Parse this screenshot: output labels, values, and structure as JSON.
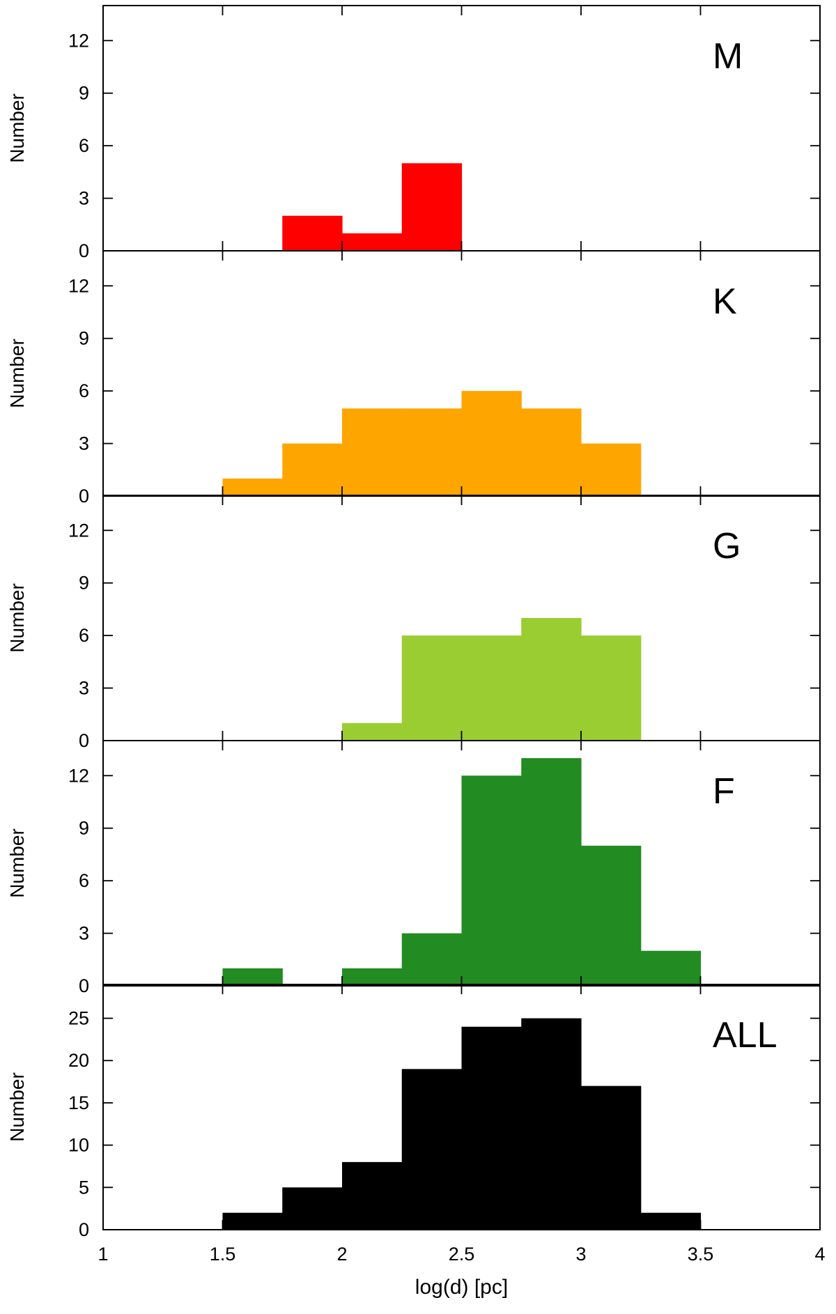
{
  "chart_data": [
    {
      "type": "bar",
      "panel_label": "M",
      "ylabel": "Number",
      "xlabel": "",
      "xlim": [
        1,
        4
      ],
      "ylim": [
        0,
        14
      ],
      "yticks": [
        0,
        3,
        6,
        9,
        12
      ],
      "bin_edges": [
        1.75,
        2.0,
        2.25,
        2.5
      ],
      "values": [
        2,
        1,
        5
      ],
      "color": "#ff0000",
      "grid": false
    },
    {
      "type": "bar",
      "panel_label": "K",
      "ylabel": "Number",
      "xlabel": "",
      "xlim": [
        1,
        4
      ],
      "ylim": [
        0,
        14
      ],
      "yticks": [
        0,
        3,
        6,
        9,
        12
      ],
      "bin_edges": [
        1.5,
        1.75,
        2.0,
        2.25,
        2.5,
        2.75,
        3.0,
        3.25
      ],
      "values": [
        1,
        3,
        5,
        5,
        6,
        5,
        3
      ],
      "color": "#ffa500",
      "grid": false
    },
    {
      "type": "bar",
      "panel_label": "G",
      "ylabel": "Number",
      "xlabel": "",
      "xlim": [
        1,
        4
      ],
      "ylim": [
        0,
        14
      ],
      "yticks": [
        0,
        3,
        6,
        9,
        12
      ],
      "bin_edges": [
        2.0,
        2.25,
        2.5,
        2.75,
        3.0,
        3.25
      ],
      "values": [
        1,
        6,
        6,
        7,
        6
      ],
      "color": "#9acd32",
      "grid": false
    },
    {
      "type": "bar",
      "panel_label": "F",
      "ylabel": "Number",
      "xlabel": "",
      "xlim": [
        1,
        4
      ],
      "ylim": [
        0,
        14
      ],
      "yticks": [
        0,
        3,
        6,
        9,
        12
      ],
      "bin_edges": [
        1.5,
        1.75,
        2.0,
        2.25,
        2.5,
        2.75,
        3.0,
        3.25,
        3.5
      ],
      "values": [
        1,
        0,
        1,
        3,
        12,
        13,
        8,
        2
      ],
      "color": "#228b22",
      "grid": false
    },
    {
      "type": "bar",
      "panel_label": "ALL",
      "ylabel": "Number",
      "xlabel": "log(d) [pc]",
      "xlim": [
        1,
        4
      ],
      "ylim": [
        0,
        29
      ],
      "yticks": [
        0,
        5,
        10,
        15,
        20,
        25
      ],
      "xticks": [
        1,
        1.5,
        2,
        2.5,
        3,
        3.5,
        4
      ],
      "xtick_labels": [
        "1",
        "1.5",
        "2",
        "2.5",
        "3",
        "3.5",
        "4"
      ],
      "bin_edges": [
        1.5,
        1.75,
        2.0,
        2.25,
        2.5,
        2.75,
        3.0,
        3.25,
        3.5
      ],
      "values": [
        2,
        5,
        8,
        19,
        24,
        25,
        17,
        2
      ],
      "color": "#000000",
      "grid": false
    }
  ]
}
